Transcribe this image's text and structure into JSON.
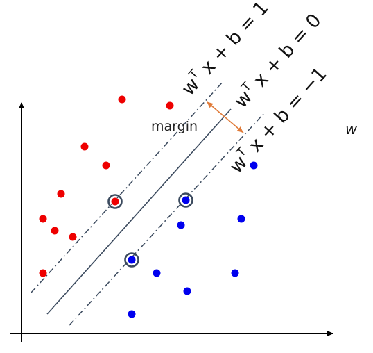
{
  "labels": {
    "eq_upper": {
      "w": "w",
      "sup": "T",
      "rest": " x + b = 1"
    },
    "eq_middle": {
      "w": "w",
      "sup": "T",
      "rest": " x + b = 0"
    },
    "eq_lower": {
      "w": "w",
      "sup": "T",
      "rest": " x + b = −1"
    },
    "margin": "margin",
    "normal": "w"
  },
  "colors": {
    "class_positive": "#ee0000",
    "class_negative": "#0000ee",
    "boundary": "#3b4a5e",
    "margin_arrow": "#e07b39",
    "axis": "#000000",
    "support_ring": "#3b4a5e"
  }
}
